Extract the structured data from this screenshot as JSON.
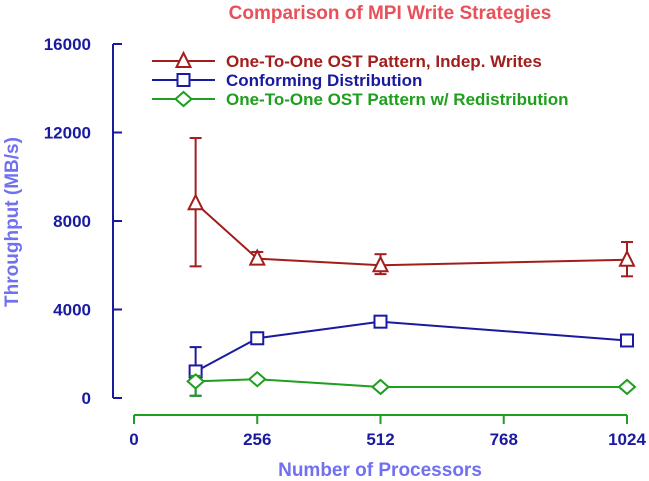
{
  "chart_data": {
    "type": "line",
    "title": "Comparison of MPI Write Strategies",
    "xlabel": "Number of Processors",
    "ylabel": "Throughput (MB/s)",
    "xlim": [
      0,
      1024
    ],
    "ylim": [
      0,
      16000
    ],
    "xticks": [
      0,
      256,
      512,
      768,
      1024
    ],
    "yticks": [
      0,
      4000,
      8000,
      12000,
      16000
    ],
    "xtick_labels": [
      "0",
      "256",
      "512",
      "768",
      "1024"
    ],
    "ytick_labels": [
      "0",
      "4000",
      "8000",
      "12000",
      "16000"
    ],
    "grid": false,
    "legend_position": "top",
    "series": [
      {
        "name": "One-To-One OST Pattern, Indep. Writes",
        "color": "#a31d1d",
        "marker": "triangle",
        "x": [
          128,
          256,
          512,
          1024
        ],
        "y": [
          8800,
          6300,
          6000,
          6250
        ],
        "err_low": [
          5950,
          6100,
          5600,
          5500
        ],
        "err_high": [
          11750,
          6600,
          6500,
          7050
        ]
      },
      {
        "name": "Conforming Distribution",
        "color": "#1a1aa0",
        "marker": "square",
        "x": [
          128,
          256,
          512,
          1024
        ],
        "y": [
          1200,
          2700,
          3450,
          2600
        ],
        "err_low": [
          100,
          2700,
          3450,
          2600
        ],
        "err_high": [
          2300,
          2700,
          3450,
          2600
        ]
      },
      {
        "name": "One-To-One OST Pattern w/ Redistribution",
        "color": "#1f9e1f",
        "marker": "diamond",
        "x": [
          128,
          256,
          512,
          1024
        ],
        "y": [
          750,
          850,
          500,
          500
        ],
        "err_low": [
          100,
          850,
          500,
          500
        ],
        "err_high": [
          1000,
          850,
          500,
          500
        ]
      }
    ]
  },
  "colors": {
    "title": "#e8505a",
    "y_axis": "#1a1aa0",
    "x_axis": "#1f9e1f",
    "y_label": "#7070f0",
    "x_label": "#7070f0"
  }
}
